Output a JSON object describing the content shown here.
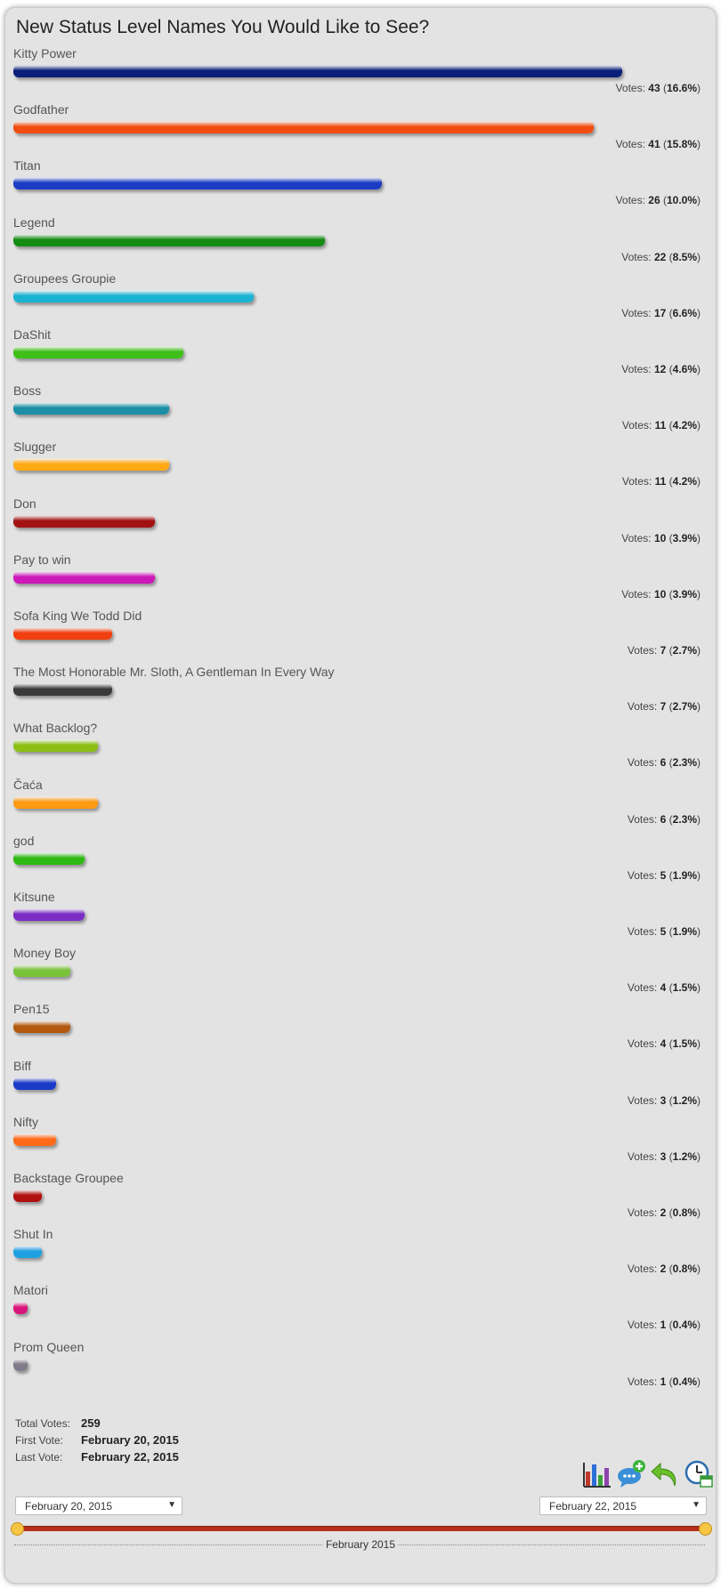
{
  "poll": {
    "title": "New Status Level Names You Would Like to See?",
    "votes_prefix": "Votes:",
    "options": [
      {
        "label": "Kitty Power",
        "votes": 43,
        "percent": "16.6%",
        "color": "#0a1f78"
      },
      {
        "label": "Godfather",
        "votes": 41,
        "percent": "15.8%",
        "color": "#f24d10"
      },
      {
        "label": "Titan",
        "votes": 26,
        "percent": "10.0%",
        "color": "#1c3cc4"
      },
      {
        "label": "Legend",
        "votes": 22,
        "percent": "8.5%",
        "color": "#148c14"
      },
      {
        "label": "Groupees Groupie",
        "votes": 17,
        "percent": "6.6%",
        "color": "#19b2d1"
      },
      {
        "label": "DaShit",
        "votes": 12,
        "percent": "4.6%",
        "color": "#3fbf19"
      },
      {
        "label": "Boss",
        "votes": 11,
        "percent": "4.2%",
        "color": "#1a8fa6"
      },
      {
        "label": "Slugger",
        "votes": 11,
        "percent": "4.2%",
        "color": "#ffaa14"
      },
      {
        "label": "Don",
        "votes": 10,
        "percent": "3.9%",
        "color": "#a31212"
      },
      {
        "label": "Pay to win",
        "votes": 10,
        "percent": "3.9%",
        "color": "#cc18b8"
      },
      {
        "label": "Sofa King We Todd Did",
        "votes": 7,
        "percent": "2.7%",
        "color": "#f23f10"
      },
      {
        "label": "The Most Honorable Mr. Sloth, A Gentleman In Every Way",
        "votes": 7,
        "percent": "2.7%",
        "color": "#3a3a3a"
      },
      {
        "label": "What Backlog?",
        "votes": 6,
        "percent": "2.3%",
        "color": "#8cbf14"
      },
      {
        "label": "Čaća",
        "votes": 6,
        "percent": "2.3%",
        "color": "#ff9a14"
      },
      {
        "label": "god",
        "votes": 5,
        "percent": "1.9%",
        "color": "#2eb814"
      },
      {
        "label": "Kitsune",
        "votes": 5,
        "percent": "1.9%",
        "color": "#7a2cc4"
      },
      {
        "label": "Money Boy",
        "votes": 4,
        "percent": "1.5%",
        "color": "#7ac23a"
      },
      {
        "label": "Pen15",
        "votes": 4,
        "percent": "1.5%",
        "color": "#b35a10"
      },
      {
        "label": "Biff",
        "votes": 3,
        "percent": "1.2%",
        "color": "#1a3ac8"
      },
      {
        "label": "Nifty",
        "votes": 3,
        "percent": "1.2%",
        "color": "#ff6a1a"
      },
      {
        "label": "Backstage Groupee",
        "votes": 2,
        "percent": "0.8%",
        "color": "#b01010"
      },
      {
        "label": "Shut In",
        "votes": 2,
        "percent": "0.8%",
        "color": "#1fa0e0"
      },
      {
        "label": "Matori",
        "votes": 1,
        "percent": "0.4%",
        "color": "#d8147a"
      },
      {
        "label": "Prom Queen",
        "votes": 1,
        "percent": "0.4%",
        "color": "#807a8a"
      }
    ]
  },
  "stats": {
    "total_label": "Total Votes:",
    "total_value": "259",
    "first_label": "First Vote:",
    "first_value": "February 20, 2015",
    "last_label": "Last Vote:",
    "last_value": "February 22, 2015"
  },
  "toolbar": {
    "icons": [
      "bar-chart-icon",
      "comment-add-icon",
      "back-arrow-icon",
      "clock-calendar-icon"
    ]
  },
  "date_range": {
    "start": "February 20, 2015",
    "end": "February 22, 2015",
    "timeline_label": "February 2015"
  }
}
